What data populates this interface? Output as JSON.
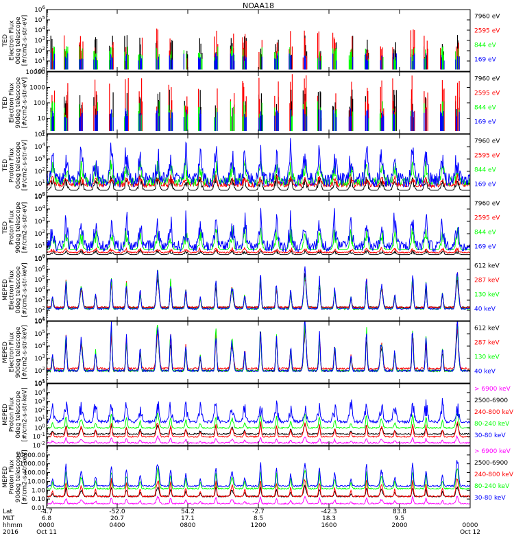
{
  "title": "NOAA18",
  "colors": {
    "black": "#000000",
    "red": "#ff0000",
    "green": "#00ff00",
    "blue": "#0000ff",
    "magenta": "#ff00ff",
    "frame": "#000000"
  },
  "x_axis": {
    "rows": [
      {
        "label": "Lat",
        "values": [
          "-4.7",
          "-52.0",
          "54.2",
          "-2.7",
          "-42.3",
          "83.8",
          ""
        ]
      },
      {
        "label": "MLT",
        "values": [
          "6.8",
          "20.7",
          "17.1",
          "8.5",
          "18.3",
          "9.5",
          ""
        ]
      },
      {
        "label": "hhmm",
        "values": [
          "0000",
          "0400",
          "0800",
          "1200",
          "1600",
          "2000",
          "0000"
        ]
      },
      {
        "label": "2016",
        "values": [
          "Oct 11",
          "",
          "",
          "",
          "",
          "",
          "Oct 12"
        ]
      }
    ],
    "ticks_hours": [
      0,
      4,
      8,
      12,
      16,
      20,
      24
    ]
  },
  "chart_data": [
    {
      "type": "line",
      "id": "p1",
      "scale": "log",
      "ylabel": [
        "TED",
        "Electron Flux",
        "0deg telescope",
        "[#/cm2-s-str-eV]"
      ],
      "ylim": [
        1,
        1000000
      ],
      "yticks": [
        {
          "v": 1,
          "t": "10^0"
        },
        {
          "v": 10,
          "t": "10^1"
        },
        {
          "v": 100,
          "t": "10^2"
        },
        {
          "v": 1000,
          "t": "10^3"
        },
        {
          "v": 10000,
          "t": "10^4"
        },
        {
          "v": 100000,
          "t": "10^5"
        },
        {
          "v": 1000000,
          "t": "10^6"
        }
      ],
      "xlim_hours": [
        0,
        24
      ],
      "series": [
        {
          "name": "7960 eV",
          "color": "#000000",
          "kind": "spike",
          "base": 10,
          "peak_dec": 1.6
        },
        {
          "name": "2595 eV",
          "color": "#ff0000",
          "kind": "spike",
          "base": 10,
          "peak_dec": 2.0
        },
        {
          "name": "844 eV",
          "color": "#00ff00",
          "kind": "spike",
          "base": 10,
          "peak_dec": 0.9
        },
        {
          "name": "169 eV",
          "color": "#0000ff",
          "kind": "spike",
          "base": 10,
          "peak_dec": 0.5
        }
      ]
    },
    {
      "type": "line",
      "id": "p2",
      "scale": "log",
      "ylabel": [
        "TED",
        "Electron Flux",
        "90deg telescope",
        "[#/cm2-s-str-eV]"
      ],
      "ylim": [
        1,
        10000
      ],
      "yticks": [
        {
          "v": 1,
          "t": "1"
        },
        {
          "v": 10,
          "t": "10"
        },
        {
          "v": 100,
          "t": "100"
        },
        {
          "v": 1000,
          "t": "1000"
        },
        {
          "v": 10000,
          "t": "10000"
        }
      ],
      "xlim_hours": [
        0,
        24
      ],
      "series": [
        {
          "name": "7960 eV",
          "color": "#000000",
          "kind": "spike",
          "base": 10,
          "peak_dec": 1.2
        },
        {
          "name": "2595 eV",
          "color": "#ff0000",
          "kind": "spike",
          "base": 10,
          "peak_dec": 1.8
        },
        {
          "name": "844 eV",
          "color": "#00ff00",
          "kind": "spike",
          "base": 10,
          "peak_dec": 0.7
        },
        {
          "name": "169 eV",
          "color": "#0000ff",
          "kind": "spike",
          "base": 10,
          "peak_dec": 0.4
        }
      ]
    },
    {
      "type": "line",
      "id": "p3",
      "scale": "log",
      "ylabel": [
        "TED",
        "Proton Flux",
        "0deg telescope",
        "[#/cm2-s-str-eV]"
      ],
      "ylim": [
        1,
        100000
      ],
      "yticks": [
        {
          "v": 1,
          "t": "10^0"
        },
        {
          "v": 10,
          "t": "10^1"
        },
        {
          "v": 100,
          "t": "10^2"
        },
        {
          "v": 1000,
          "t": "10^3"
        },
        {
          "v": 10000,
          "t": "10^4"
        },
        {
          "v": 100000,
          "t": "10^5"
        }
      ],
      "xlim_hours": [
        0,
        24
      ],
      "series": [
        {
          "name": "7960 eV",
          "color": "#000000",
          "kind": "noise",
          "base": 3,
          "amp_dec": 1.0,
          "min_dec": 0.0
        },
        {
          "name": "2595 eV",
          "color": "#ff0000",
          "kind": "noise",
          "base": 8,
          "amp_dec": 0.6,
          "min_dec": 0.4
        },
        {
          "name": "844 eV",
          "color": "#00ff00",
          "kind": "noise",
          "base": 15,
          "amp_dec": 1.4,
          "min_dec": 0.7
        },
        {
          "name": "169 eV",
          "color": "#0000ff",
          "kind": "noise",
          "base": 20,
          "amp_dec": 2.3,
          "min_dec": 1.2
        }
      ]
    },
    {
      "type": "line",
      "id": "p4",
      "scale": "log",
      "ylabel": [
        "TED",
        "Proton Flux",
        "90deg telescope",
        "[#/cm2-s-str-eV]"
      ],
      "ylim": [
        1,
        100000
      ],
      "yticks": [
        {
          "v": 1,
          "t": "10^0"
        },
        {
          "v": 10,
          "t": "10^1"
        },
        {
          "v": 100,
          "t": "10^2"
        },
        {
          "v": 1000,
          "t": "10^3"
        },
        {
          "v": 10000,
          "t": "10^4"
        },
        {
          "v": 100000,
          "t": "10^5"
        }
      ],
      "xlim_hours": [
        0,
        24
      ],
      "series": [
        {
          "name": "7960 eV",
          "color": "#000000",
          "kind": "noise",
          "base": 2,
          "amp_dec": 0.3,
          "min_dec": 0.0
        },
        {
          "name": "2595 eV",
          "color": "#ff0000",
          "kind": "noise",
          "base": 3,
          "amp_dec": 0.3,
          "min_dec": 0.1
        },
        {
          "name": "844 eV",
          "color": "#00ff00",
          "kind": "noise",
          "base": 5,
          "amp_dec": 1.5,
          "min_dec": 0.0
        },
        {
          "name": "169 eV",
          "color": "#0000ff",
          "kind": "noise",
          "base": 10,
          "amp_dec": 2.2,
          "min_dec": 0.9
        }
      ]
    },
    {
      "type": "line",
      "id": "p5",
      "scale": "log",
      "ylabel": [
        "MEPED",
        "Electron Flux",
        "0deg telescope",
        "[#/cm2-s-str-keV]"
      ],
      "ylim": [
        10,
        10000000
      ],
      "yticks": [
        {
          "v": 10,
          "t": "10^1"
        },
        {
          "v": 100,
          "t": "10^2"
        },
        {
          "v": 1000,
          "t": "10^3"
        },
        {
          "v": 10000,
          "t": "10^4"
        },
        {
          "v": 100000,
          "t": "10^5"
        },
        {
          "v": 1000000,
          "t": "10^6"
        },
        {
          "v": 10000000,
          "t": "10^7"
        }
      ],
      "xlim_hours": [
        0,
        24
      ],
      "series": [
        {
          "name": "612 keV",
          "color": "#000000",
          "kind": "peaks",
          "base": 200,
          "amp_dec": 2.5
        },
        {
          "name": "287 keV",
          "color": "#ff0000",
          "kind": "peaks",
          "base": 200,
          "amp_dec": 2.8
        },
        {
          "name": "130 keV",
          "color": "#00ff00",
          "kind": "peaks",
          "base": 150,
          "amp_dec": 3.0
        },
        {
          "name": "40 keV",
          "color": "#0000ff",
          "kind": "peaks",
          "base": 150,
          "amp_dec": 3.2
        }
      ]
    },
    {
      "type": "line",
      "id": "p6",
      "scale": "log",
      "ylabel": [
        "MEPED",
        "Electron Flux",
        "90deg telescope",
        "[#/cm2-s-str-keV]"
      ],
      "ylim": [
        10,
        1000000
      ],
      "yticks": [
        {
          "v": 10,
          "t": "10^1"
        },
        {
          "v": 100,
          "t": "10^2"
        },
        {
          "v": 1000,
          "t": "10^3"
        },
        {
          "v": 10000,
          "t": "10^4"
        },
        {
          "v": 100000,
          "t": "10^5"
        },
        {
          "v": 1000000,
          "t": "10^6"
        }
      ],
      "xlim_hours": [
        0,
        24
      ],
      "series": [
        {
          "name": "612 keV",
          "color": "#000000",
          "kind": "peaks",
          "base": 100,
          "amp_dec": 3.0
        },
        {
          "name": "287 keV",
          "color": "#ff0000",
          "kind": "peaks",
          "base": 150,
          "amp_dec": 3.0
        },
        {
          "name": "130 keV",
          "color": "#00ff00",
          "kind": "peaks",
          "base": 100,
          "amp_dec": 3.4
        },
        {
          "name": "40 keV",
          "color": "#0000ff",
          "kind": "peaks",
          "base": 100,
          "amp_dec": 3.5
        }
      ]
    },
    {
      "type": "line",
      "id": "p7",
      "scale": "log",
      "ylabel": [
        "MEPED",
        "Proton Flux",
        "0deg telescope",
        "[#/cm2-s-str-keV]"
      ],
      "ylim": [
        0.01,
        100000
      ],
      "yticks": [
        {
          "v": 0.01,
          "t": "10^-2"
        },
        {
          "v": 0.1,
          "t": "10^-1"
        },
        {
          "v": 1,
          "t": "10^0"
        },
        {
          "v": 10,
          "t": "10^1"
        },
        {
          "v": 100,
          "t": "10^2"
        },
        {
          "v": 1000,
          "t": "10^3"
        },
        {
          "v": 10000,
          "t": "10^4"
        },
        {
          "v": 100000,
          "t": "10^5"
        }
      ],
      "xlim_hours": [
        0,
        24
      ],
      "series": [
        {
          "name": "> 6900 keV",
          "color": "#ff00ff",
          "kind": "peaks",
          "base": 0.02,
          "amp_dec": 0.6
        },
        {
          "name": "2500-6900",
          "color": "#000000",
          "kind": "peaks",
          "base": 0.2,
          "amp_dec": 1.0
        },
        {
          "name": "240-800 keV",
          "color": "#ff0000",
          "kind": "peaks",
          "base": 0.1,
          "amp_dec": 1.5
        },
        {
          "name": "80-240 keV",
          "color": "#00ff00",
          "kind": "peaks",
          "base": 1,
          "amp_dec": 1.5
        },
        {
          "name": "30-80 keV",
          "color": "#0000ff",
          "kind": "noise",
          "base": 5,
          "amp_dec": 2.0,
          "min_dec": 0.3
        }
      ]
    },
    {
      "type": "line",
      "id": "p8",
      "scale": "log",
      "ylabel": [
        "MEPED",
        "Proton Flux",
        "90deg telescope",
        "[#/cm2-s-str-keV]"
      ],
      "ylim": [
        0.01,
        100000
      ],
      "yticks": [
        {
          "v": 0.01,
          "t": "0.01"
        },
        {
          "v": 0.1,
          "t": "0.10"
        },
        {
          "v": 1,
          "t": "1.00"
        },
        {
          "v": 10,
          "t": "10.00"
        },
        {
          "v": 100,
          "t": "100.00"
        },
        {
          "v": 1000,
          "t": "1000.00"
        },
        {
          "v": 10000,
          "t": "10000.00"
        }
      ],
      "xlim_hours": [
        0,
        24
      ],
      "series": [
        {
          "name": "> 6900 keV",
          "color": "#ff00ff",
          "kind": "peaks",
          "base": 0.03,
          "amp_dec": 0.7
        },
        {
          "name": "2500-6900",
          "color": "#000000",
          "kind": "peaks",
          "base": 0.2,
          "amp_dec": 1.0
        },
        {
          "name": "240-800 keV",
          "color": "#ff0000",
          "kind": "peaks",
          "base": 0.2,
          "amp_dec": 1.8
        },
        {
          "name": "80-240 keV",
          "color": "#00ff00",
          "kind": "peaks",
          "base": 1.5,
          "amp_dec": 2.0
        },
        {
          "name": "30-80 keV",
          "color": "#0000ff",
          "kind": "peaks",
          "base": 3,
          "amp_dec": 2.5
        }
      ]
    }
  ]
}
